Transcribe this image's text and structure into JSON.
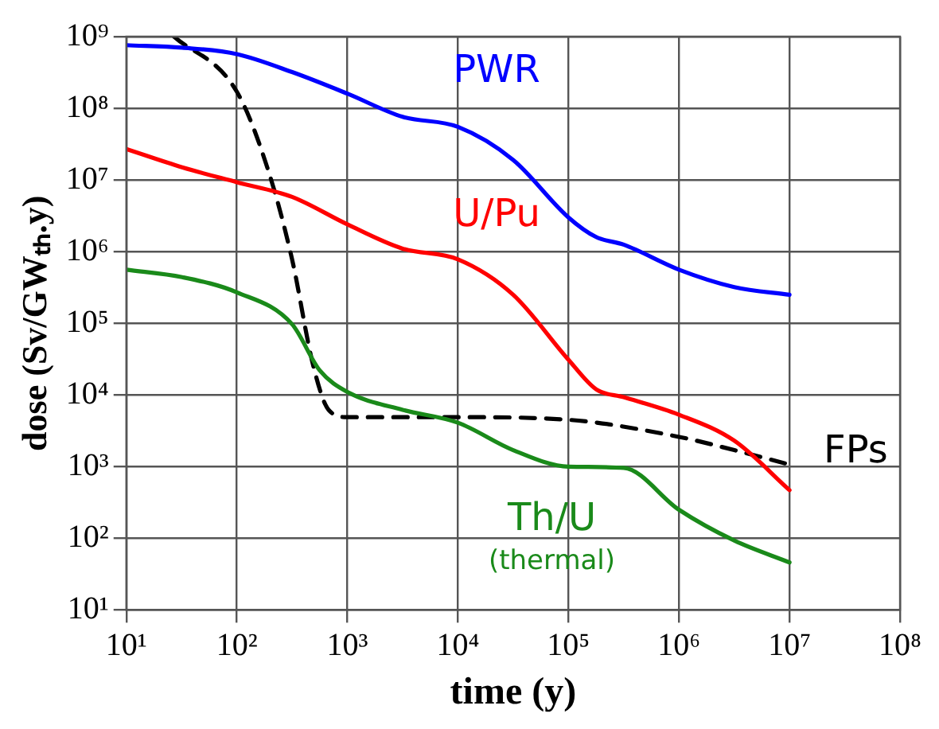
{
  "chart_data": {
    "type": "line",
    "xlabel": "time (y)",
    "ylabel": "dose (Sv/GWₜₕ.y)",
    "log": "xy",
    "grid": true,
    "legend": false,
    "marker": "none",
    "xlim": [
      10,
      100000000
    ],
    "ylim": [
      10,
      1000000000
    ],
    "xticks": [
      {
        "value": 10,
        "label": "10¹"
      },
      {
        "value": 100,
        "label": "10²"
      },
      {
        "value": 1000,
        "label": "10³"
      },
      {
        "value": 10000,
        "label": "10⁴"
      },
      {
        "value": 100000,
        "label": "10⁵"
      },
      {
        "value": 1000000,
        "label": "10⁶"
      },
      {
        "value": 10000000,
        "label": "10⁷"
      },
      {
        "value": 100000000,
        "label": "10⁸"
      }
    ],
    "yticks": [
      {
        "value": 10,
        "label": "10¹"
      },
      {
        "value": 100,
        "label": "10²"
      },
      {
        "value": 1000,
        "label": "10³"
      },
      {
        "value": 10000,
        "label": "10⁴"
      },
      {
        "value": 100000,
        "label": "10⁵"
      },
      {
        "value": 1000000,
        "label": "10⁶"
      },
      {
        "value": 10000000,
        "label": "10⁷"
      },
      {
        "value": 100000000,
        "label": "10⁸"
      },
      {
        "value": 1000000000,
        "label": "10⁹"
      }
    ],
    "series": [
      {
        "name": "PWR",
        "color": "#0000ff",
        "line_style": "solid",
        "x": [
          10,
          32,
          100,
          316,
          1000,
          3162,
          10000,
          31623,
          100000,
          177828,
          316228,
          1000000,
          3162278,
          10000000
        ],
        "values": [
          760000000,
          700000000,
          570000000,
          320000000,
          160000000,
          76000000,
          55000000,
          19000000,
          3000000,
          1600000,
          1250000,
          560000,
          320000,
          250000
        ]
      },
      {
        "name": "U/Pu",
        "color": "#ff0000",
        "line_style": "solid",
        "x": [
          10,
          32,
          100,
          316,
          1000,
          3162,
          10000,
          31623,
          100000,
          177828,
          316228,
          1000000,
          3162278,
          10000000
        ],
        "values": [
          27000000,
          15000000,
          9300000,
          5800000,
          2400000,
          1100000,
          780000,
          250000,
          31000,
          12000,
          9300,
          5300,
          2300,
          470
        ]
      },
      {
        "name": "Th/U (thermal)",
        "color": "#1a8a1a",
        "line_style": "solid",
        "x": [
          10,
          32,
          100,
          316,
          562,
          1000,
          3162,
          10000,
          31623,
          100000,
          316228,
          1000000,
          3162278,
          10000000
        ],
        "values": [
          560000,
          440000,
          270000,
          97000,
          22000,
          11000,
          6200,
          4100,
          1700,
          1000,
          960,
          250,
          93,
          46
        ]
      },
      {
        "name": "FPs",
        "color": "#000000",
        "line_style": "dashed",
        "x": [
          27,
          100,
          191,
          316,
          490,
          676,
          1000,
          10000,
          100000,
          1000000,
          3162278,
          10000000
        ],
        "values": [
          1000000000,
          170000000,
          14000000,
          780000,
          26000,
          6200,
          4900,
          4900,
          4500,
          2600,
          1700,
          1070
        ]
      }
    ]
  }
}
